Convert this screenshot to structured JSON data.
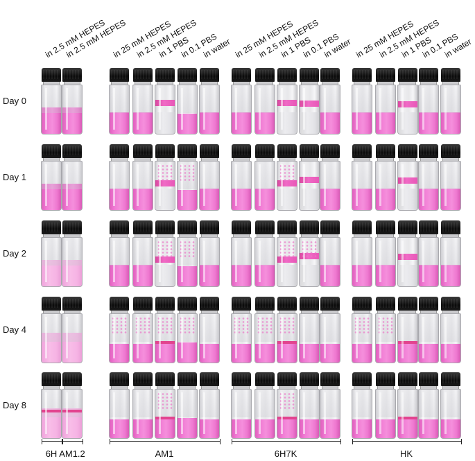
{
  "column_labels": [
    "in 2.5 mM HEPES",
    "in 2.5 mM HEPES",
    "in 25 mM HEPES",
    "in 2.5 mM HEPES",
    "in 1 PBS",
    "in 0.1 PBS",
    "in water",
    "in 25 mM HEPES",
    "in 2.5 mM HEPES",
    "in 1 PBS",
    "in 0.1 PBS",
    "in water",
    "in 25 mM HEPES",
    "in 2.5 mM HEPES",
    "in 1 PBS",
    "in 0.1 PBS",
    "in water"
  ],
  "row_labels": [
    "Day 0",
    "Day 1",
    "Day 2",
    "Day 4",
    "Day 8"
  ],
  "group_labels": [
    "6H",
    "AM1.2",
    "AM1",
    "6H7K",
    "HK"
  ],
  "colors": {
    "cap": "#111111",
    "pink_solution": "#f07bd4",
    "pink_band": "#e857b7",
    "glass": "#e7e7ea"
  }
}
